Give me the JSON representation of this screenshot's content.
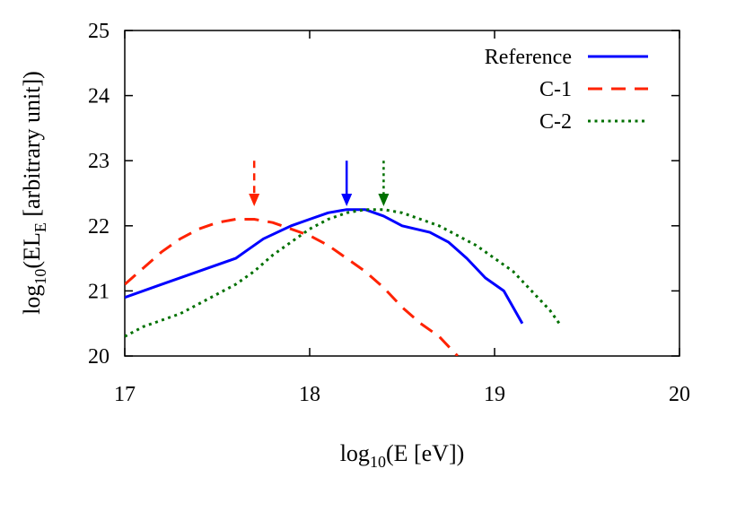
{
  "chart_data": {
    "type": "line",
    "title": "",
    "xlabel": {
      "main": "log",
      "sub": "10",
      "tail": "(E [eV])"
    },
    "ylabel": {
      "main": "log",
      "sub": "10",
      "mid": "(EL",
      "sub2": "E",
      "tail": " [arbitrary unit])"
    },
    "xlim": [
      17,
      20
    ],
    "ylim": [
      20,
      25
    ],
    "xticks": [
      17,
      18,
      19,
      20
    ],
    "yticks": [
      20,
      21,
      22,
      23,
      24,
      25
    ],
    "legend_position": "top-right",
    "series": [
      {
        "name": "Reference",
        "style": "solid",
        "color": "#0000ff",
        "x": [
          17.0,
          17.2,
          17.4,
          17.6,
          17.65,
          17.75,
          17.9,
          18.0,
          18.1,
          18.2,
          18.3,
          18.4,
          18.5,
          18.65,
          18.75,
          18.85,
          18.95,
          19.05,
          19.15
        ],
        "y": [
          20.9,
          21.1,
          21.3,
          21.5,
          21.6,
          21.8,
          22.0,
          22.1,
          22.2,
          22.25,
          22.25,
          22.15,
          22.0,
          21.9,
          21.75,
          21.5,
          21.2,
          21.0,
          20.5
        ]
      },
      {
        "name": "C-1",
        "style": "dashed",
        "color": "#ff2200",
        "x": [
          17.0,
          17.1,
          17.2,
          17.3,
          17.4,
          17.5,
          17.6,
          17.7,
          17.8,
          17.9,
          18.0,
          18.1,
          18.2,
          18.3,
          18.4,
          18.5,
          18.6,
          18.7,
          18.8
        ],
        "y": [
          21.1,
          21.35,
          21.6,
          21.8,
          21.95,
          22.05,
          22.1,
          22.1,
          22.05,
          21.95,
          21.85,
          21.7,
          21.5,
          21.3,
          21.05,
          20.75,
          20.5,
          20.3,
          20.0
        ]
      },
      {
        "name": "C-2",
        "style": "dotted",
        "color": "#007000",
        "x": [
          17.0,
          17.1,
          17.2,
          17.3,
          17.4,
          17.5,
          17.6,
          17.7,
          17.8,
          17.9,
          18.0,
          18.1,
          18.2,
          18.3,
          18.4,
          18.5,
          18.6,
          18.7,
          18.8,
          18.9,
          19.0,
          19.1,
          19.2,
          19.3,
          19.35
        ],
        "y": [
          20.3,
          20.45,
          20.55,
          20.65,
          20.8,
          20.95,
          21.1,
          21.3,
          21.55,
          21.75,
          21.95,
          22.1,
          22.2,
          22.25,
          22.25,
          22.2,
          22.1,
          22.0,
          21.85,
          21.7,
          21.5,
          21.3,
          21.0,
          20.7,
          20.5
        ]
      }
    ],
    "annotations": [
      {
        "type": "arrow",
        "series": "C-1",
        "style": "dashed",
        "color": "#ff2200",
        "x": 17.7,
        "y_from": 23.0,
        "y_to": 22.3
      },
      {
        "type": "arrow",
        "series": "Reference",
        "style": "solid",
        "color": "#0000ff",
        "x": 18.2,
        "y_from": 23.0,
        "y_to": 22.3
      },
      {
        "type": "arrow",
        "series": "C-2",
        "style": "dotted",
        "color": "#007000",
        "x": 18.4,
        "y_from": 23.0,
        "y_to": 22.3
      }
    ]
  }
}
